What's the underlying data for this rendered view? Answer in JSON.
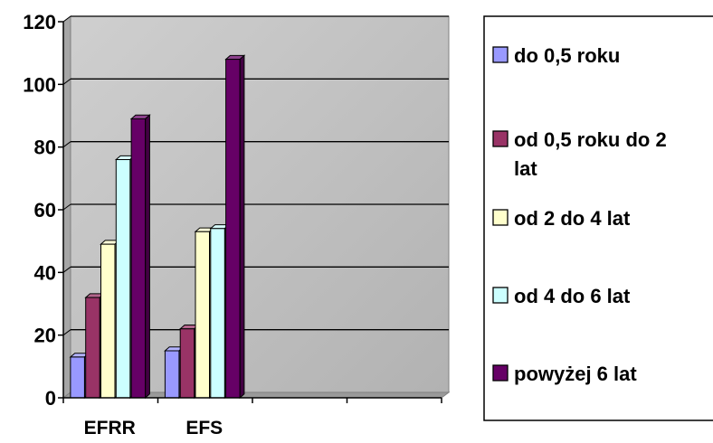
{
  "chart_data": {
    "type": "bar",
    "categories": [
      "EFRR",
      "EFS"
    ],
    "series": [
      {
        "name": "do 0,5 roku",
        "values": [
          13,
          15
        ],
        "color": "#9999FF"
      },
      {
        "name": "od 0,5 roku do 2 lat",
        "values": [
          32,
          22
        ],
        "color": "#993366"
      },
      {
        "name": "od 2 do 4 lat",
        "values": [
          49,
          53
        ],
        "color": "#FFFFCC"
      },
      {
        "name": "od 4 do 6 lat",
        "values": [
          76,
          54
        ],
        "color": "#CCFFFF"
      },
      {
        "name": "powyżej 6 lat",
        "values": [
          89,
          108
        ],
        "color": "#660066"
      }
    ],
    "ylim": [
      0,
      120
    ],
    "yticks": [
      "0",
      "20",
      "40",
      "60",
      "80",
      "100",
      "120"
    ],
    "grid": true,
    "legend": "right",
    "plot_background": "#C0C0C0"
  }
}
